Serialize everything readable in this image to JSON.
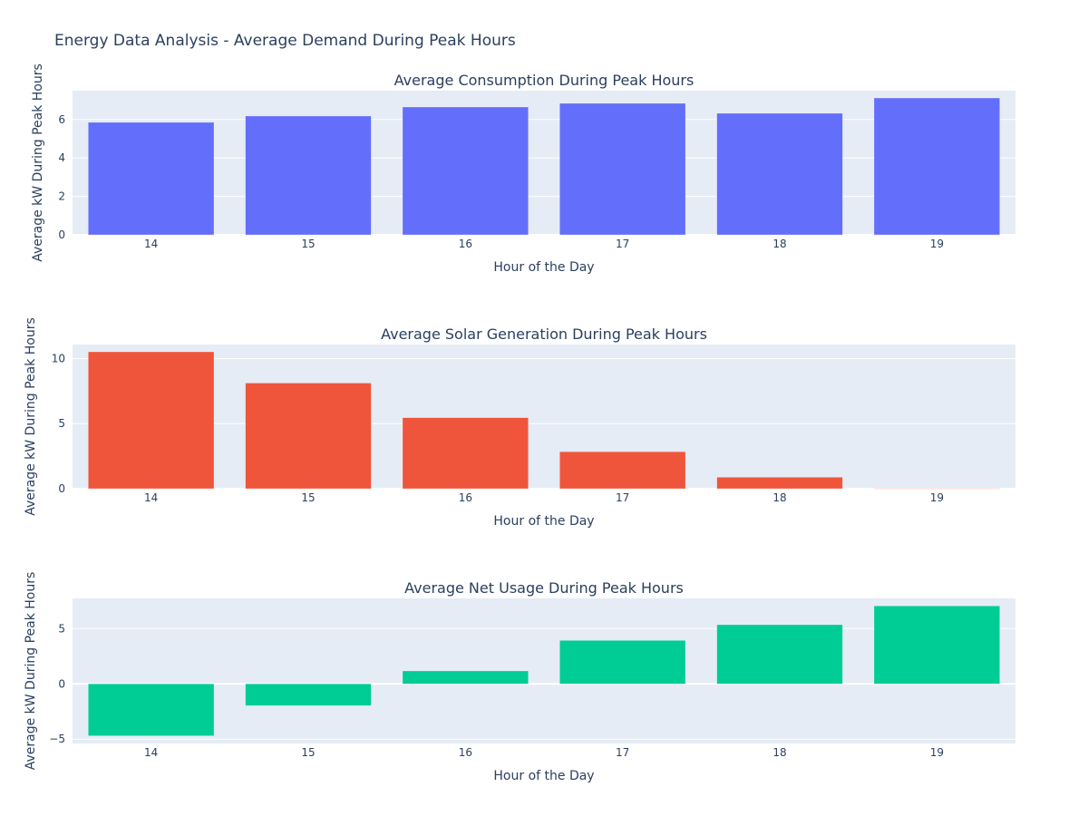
{
  "title": "Energy Data Analysis - Average Demand During Peak Hours",
  "chart_data": [
    {
      "type": "bar",
      "title": "Average Consumption During Peak Hours",
      "xlabel": "Hour of the Day",
      "ylabel": "Average kW During Peak Hours",
      "categories": [
        "14",
        "15",
        "16",
        "17",
        "18",
        "19"
      ],
      "values": [
        5.85,
        6.18,
        6.65,
        6.84,
        6.32,
        7.12
      ],
      "ylim": [
        0,
        7.5
      ],
      "yticks": [
        0,
        2,
        4,
        6
      ],
      "color": "#636efa",
      "grid": true
    },
    {
      "type": "bar",
      "title": "Average Solar Generation During Peak Hours",
      "xlabel": "Hour of the Day",
      "ylabel": "Average kW During Peak Hours",
      "categories": [
        "14",
        "15",
        "16",
        "17",
        "18",
        "19"
      ],
      "values": [
        10.52,
        8.12,
        5.46,
        2.84,
        0.88,
        0.02
      ],
      "ylim": [
        0,
        11.08
      ],
      "yticks": [
        0,
        5,
        10
      ],
      "color": "#ef553b",
      "grid": true
    },
    {
      "type": "bar",
      "title": "Average Net Usage During Peak Hours",
      "xlabel": "Hour of the Day",
      "ylabel": "Average kW During Peak Hours",
      "categories": [
        "14",
        "15",
        "16",
        "17",
        "18",
        "19"
      ],
      "values": [
        -4.7,
        -1.97,
        1.17,
        3.93,
        5.35,
        7.05
      ],
      "ylim": [
        -5.39,
        7.73
      ],
      "yticks": [
        -5,
        0,
        5
      ],
      "color": "#00cc96",
      "grid": true
    }
  ]
}
